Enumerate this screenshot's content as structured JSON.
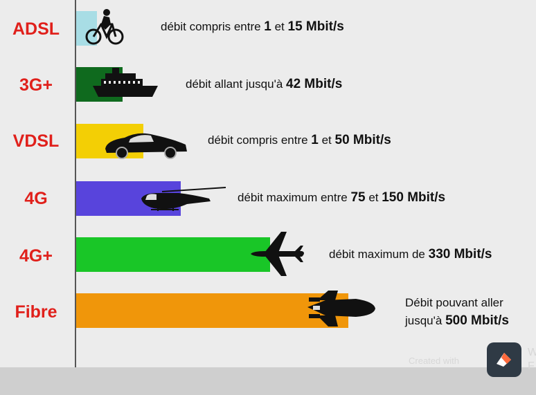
{
  "chart_data": {
    "type": "bar",
    "orientation": "horizontal",
    "categories": [
      "ADSL",
      "3G+",
      "VDSL",
      "4G",
      "4G+",
      "Fibre"
    ],
    "vehicles": [
      "bicycle-icon",
      "ship-icon",
      "car-icon",
      "helicopter-icon",
      "airplane-icon",
      "space-shuttle-icon"
    ],
    "values": [
      15,
      42,
      50,
      150,
      330,
      500
    ],
    "colors": [
      "#a8dde5",
      "#0f6a1e",
      "#f3cf05",
      "#5844dc",
      "#19c627",
      "#f0960a"
    ],
    "descriptions": [
      {
        "pre": "débit compris entre ",
        "num1": "1",
        "mid": " et ",
        "num2": "15 Mbit/s"
      },
      {
        "pre": "débit allant jusqu'à ",
        "num1": "",
        "mid": "",
        "num2": "42 Mbit/s"
      },
      {
        "pre": "débit compris entre ",
        "num1": "1",
        "mid": " et ",
        "num2": "50 Mbit/s"
      },
      {
        "pre": "débit maximum entre ",
        "num1": "75",
        "mid": " et ",
        "num2": "150 Mbit/s"
      },
      {
        "pre": "débit maximum de ",
        "num1": "",
        "mid": "",
        "num2": "330 Mbit/s"
      },
      {
        "pre": "Débit pouvant aller jusqu'à ",
        "num1": "",
        "mid": "",
        "num2": "500 Mbit/s"
      }
    ],
    "grid": false,
    "legend": "none"
  },
  "watermark": {
    "text": "Created with",
    "right_fragment": "W F"
  }
}
